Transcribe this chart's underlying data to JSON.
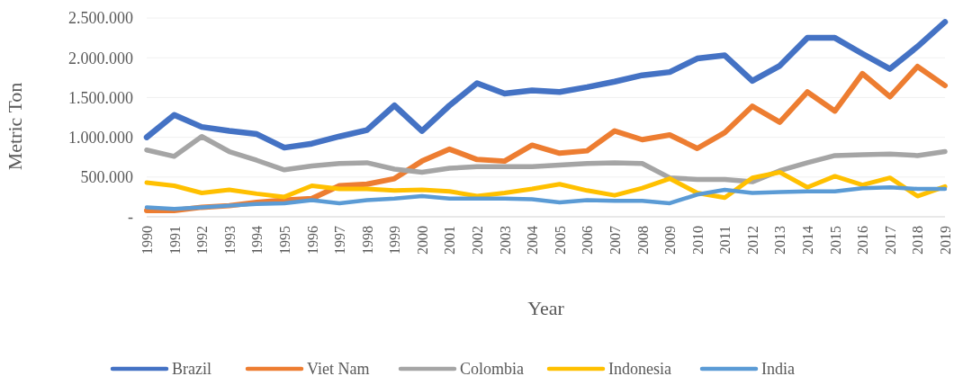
{
  "chart_data": {
    "type": "line",
    "xlabel": "Year",
    "ylabel": "Metric Ton",
    "categories": [
      "1990",
      "1991",
      "1992",
      "1993",
      "1994",
      "1995",
      "1996",
      "1997",
      "1998",
      "1999",
      "2000",
      "2001",
      "2002",
      "2003",
      "2004",
      "2005",
      "2006",
      "2007",
      "2008",
      "2009",
      "2010",
      "2011",
      "2012",
      "2013",
      "2014",
      "2015",
      "2016",
      "2017",
      "2018",
      "2019"
    ],
    "ylim": [
      0,
      2500000
    ],
    "yticks": [
      {
        "value": 0,
        "label": "-"
      },
      {
        "value": 500000,
        "label": "500.000"
      },
      {
        "value": 1000000,
        "label": "1.000.000"
      },
      {
        "value": 1500000,
        "label": "1.500.000"
      },
      {
        "value": 2000000,
        "label": "2.000.000"
      },
      {
        "value": 2500000,
        "label": "2.500.000"
      }
    ],
    "grid": "y",
    "legend": "bottom",
    "marker": "none",
    "line_style": "solid",
    "series": [
      {
        "name": "Brazil",
        "color": "#4472c4",
        "values": [
          1000000,
          1280000,
          1130000,
          1080000,
          1040000,
          870000,
          920000,
          1010000,
          1090000,
          1400000,
          1080000,
          1400000,
          1680000,
          1550000,
          1590000,
          1570000,
          1630000,
          1700000,
          1780000,
          1820000,
          1990000,
          2030000,
          1710000,
          1900000,
          2250000,
          2250000,
          2050000,
          1860000,
          2140000,
          2450000
        ]
      },
      {
        "name": "Viet Nam",
        "color": "#ed7d31",
        "values": [
          80000,
          80000,
          120000,
          140000,
          180000,
          210000,
          230000,
          390000,
          410000,
          480000,
          700000,
          850000,
          720000,
          700000,
          900000,
          800000,
          830000,
          1080000,
          970000,
          1030000,
          860000,
          1060000,
          1390000,
          1190000,
          1570000,
          1330000,
          1800000,
          1510000,
          1890000,
          1650000
        ]
      },
      {
        "name": "Colombia",
        "color": "#a5a5a5",
        "values": [
          840000,
          760000,
          1010000,
          820000,
          710000,
          590000,
          640000,
          670000,
          680000,
          600000,
          560000,
          610000,
          630000,
          630000,
          630000,
          650000,
          670000,
          680000,
          670000,
          490000,
          470000,
          470000,
          440000,
          580000,
          680000,
          770000,
          780000,
          790000,
          770000,
          820000
        ]
      },
      {
        "name": "Indonesia",
        "color": "#ffc000",
        "values": [
          430000,
          390000,
          300000,
          340000,
          290000,
          250000,
          390000,
          350000,
          350000,
          330000,
          340000,
          320000,
          260000,
          300000,
          350000,
          410000,
          330000,
          270000,
          360000,
          480000,
          300000,
          240000,
          490000,
          560000,
          370000,
          510000,
          400000,
          490000,
          260000,
          380000
        ]
      },
      {
        "name": "India",
        "color": "#5b9bd5",
        "values": [
          120000,
          100000,
          120000,
          140000,
          160000,
          170000,
          210000,
          170000,
          210000,
          230000,
          260000,
          230000,
          230000,
          230000,
          220000,
          180000,
          210000,
          200000,
          200000,
          170000,
          280000,
          340000,
          300000,
          310000,
          320000,
          320000,
          360000,
          370000,
          350000,
          350000
        ]
      }
    ]
  }
}
